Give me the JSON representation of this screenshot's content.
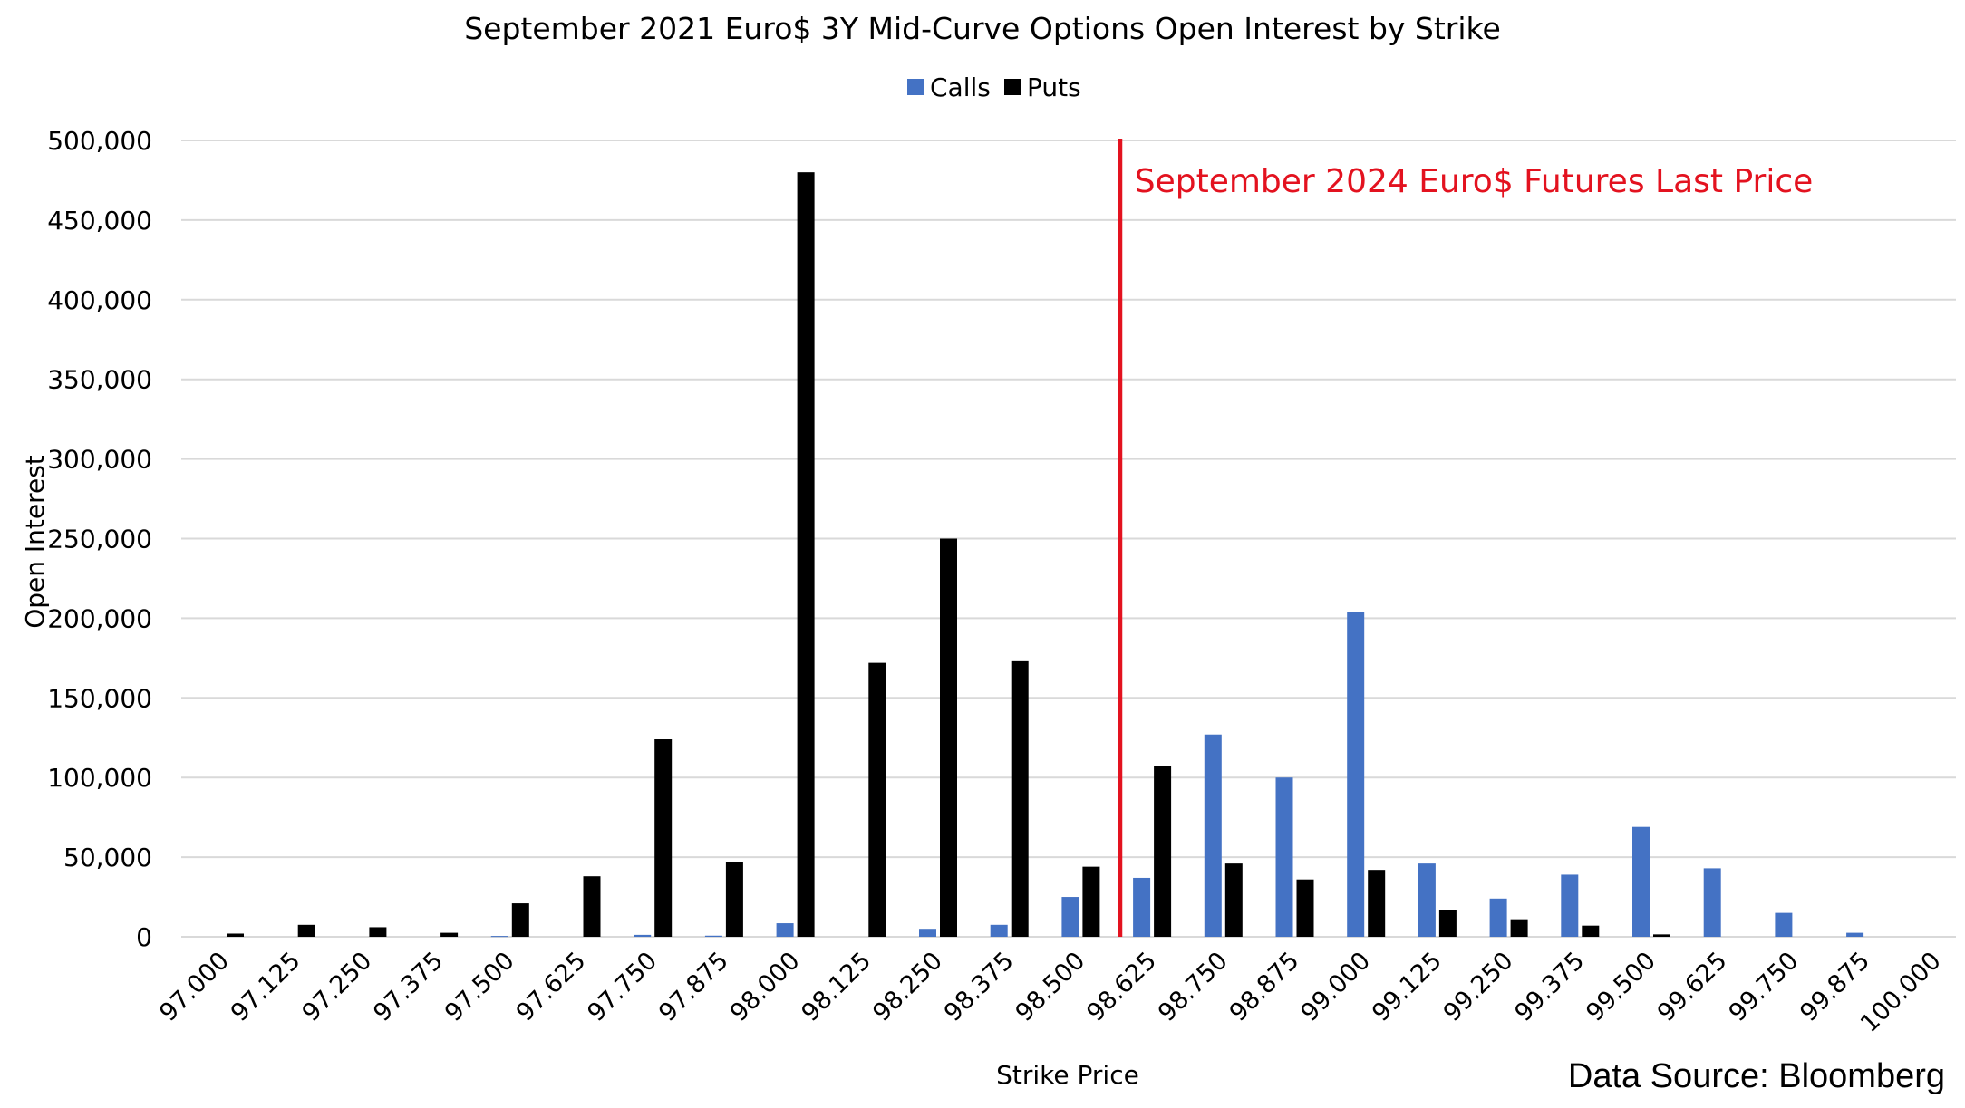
{
  "chart_data": {
    "type": "bar",
    "title": "September 2021 Euro$ 3Y Mid-Curve Options Open Interest by Strike",
    "xlabel": "Strike Price",
    "ylabel": "Open Interest",
    "ylim": [
      0,
      500000
    ],
    "yticks": [
      "0",
      "50,000",
      "100,000",
      "150,000",
      "200,000",
      "250,000",
      "300,000",
      "350,000",
      "400,000",
      "450,000",
      "500,000"
    ],
    "grid": true,
    "legend_position": "top-center",
    "categories": [
      "97.000",
      "97.125",
      "97.250",
      "97.375",
      "97.500",
      "97.625",
      "97.750",
      "97.875",
      "98.000",
      "98.125",
      "98.250",
      "98.375",
      "98.500",
      "98.625",
      "98.750",
      "98.875",
      "99.000",
      "99.125",
      "99.250",
      "99.375",
      "99.500",
      "99.625",
      "99.750",
      "99.875",
      "100.000"
    ],
    "series": [
      {
        "name": "Calls",
        "color": "#4472c4",
        "values": [
          0,
          0,
          0,
          0,
          500,
          0,
          1200,
          700,
          8500,
          0,
          5000,
          7500,
          25000,
          37000,
          127000,
          100000,
          204000,
          46000,
          24000,
          39000,
          69000,
          43000,
          15000,
          2500,
          0
        ]
      },
      {
        "name": "Puts",
        "color": "#000000",
        "values": [
          2000,
          7500,
          6000,
          2500,
          21000,
          38000,
          124000,
          47000,
          480000,
          172000,
          250000,
          173000,
          44000,
          107000,
          46000,
          36000,
          42000,
          17000,
          11000,
          7000,
          1500,
          0,
          0,
          0,
          0
        ]
      }
    ],
    "annotations": [
      {
        "text": "September 2024 Euro$ Futures Last Price",
        "kind": "vertical-line",
        "between": [
          "98.500",
          "98.625"
        ],
        "color": "#e3121f"
      }
    ],
    "source_note": "Data Source: Bloomberg"
  }
}
